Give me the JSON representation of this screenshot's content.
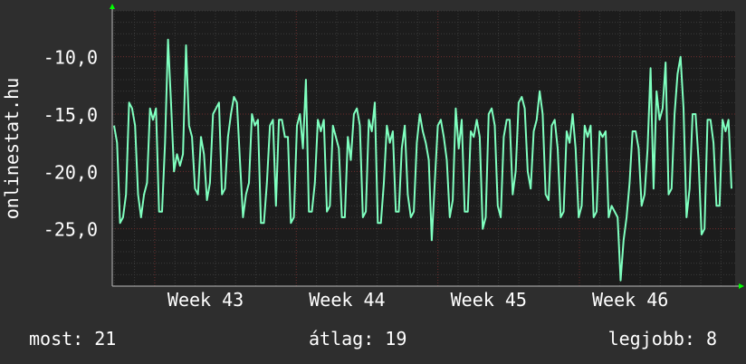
{
  "chart_data": {
    "type": "line",
    "ylabel": "onlinestat.hu",
    "ylim": [
      -30,
      -6
    ],
    "yticks": [
      -10,
      -15,
      -20,
      -25
    ],
    "ytick_labels": [
      "-10,0",
      "-15,0",
      "-20,0",
      "-25,0"
    ],
    "x_range_weeks": [
      42.7,
      47.1
    ],
    "x_tick_labels": [
      {
        "label": "Week 43",
        "week": 43
      },
      {
        "label": "Week 44",
        "week": 44
      },
      {
        "label": "Week 45",
        "week": 45
      },
      {
        "label": "Week 46",
        "week": 46
      }
    ],
    "grid": true,
    "colors": {
      "background": "#2e2e2e",
      "plot_background": "#1c1c1c",
      "line": "#7fffbf",
      "grid_major": "#6a2a2a",
      "grid_minor": "#3a3a3a",
      "axis_arrow": "#00ff00"
    },
    "series": [
      {
        "values": [
          -16,
          -17.5,
          -24.5,
          -24,
          -22,
          -14,
          -14.5,
          -16,
          -22,
          -24,
          -22,
          -21,
          -14.5,
          -15.5,
          -14.5,
          -23.5,
          -23.5,
          -17.5,
          -8.5,
          -14,
          -20,
          -18.5,
          -19.5,
          -18.5,
          -9,
          -16,
          -17,
          -21.5,
          -22,
          -17,
          -18.5,
          -22.5,
          -21,
          -15,
          -14.5,
          -14,
          -22,
          -21.5,
          -17,
          -15,
          -13.5,
          -14,
          -19,
          -24,
          -22,
          -21,
          -15,
          -16,
          -15.5,
          -24.5,
          -24.5,
          -21,
          -16,
          -15.5,
          -23,
          -15.5,
          -15.5,
          -17,
          -17,
          -24.5,
          -24,
          -16,
          -15,
          -18,
          -12,
          -23.5,
          -23.5,
          -21,
          -15.5,
          -16.5,
          -15.5,
          -23.5,
          -23,
          -16,
          -17,
          -18,
          -24,
          -24,
          -17,
          -19,
          -15,
          -14.5,
          -16,
          -24,
          -23.5,
          -15.5,
          -16.5,
          -14,
          -24.5,
          -24.5,
          -21,
          -16,
          -17.5,
          -16.5,
          -23.5,
          -23.5,
          -18,
          -16,
          -22,
          -24,
          -23.5,
          -17.5,
          -15,
          -16.5,
          -17.5,
          -19,
          -26,
          -21,
          -16,
          -15.5,
          -17,
          -19,
          -24,
          -22.5,
          -14.5,
          -18,
          -15.5,
          -23.5,
          -23.5,
          -16.5,
          -17,
          -15.5,
          -17,
          -25,
          -24,
          -15,
          -14.5,
          -16,
          -23,
          -24,
          -17,
          -15.5,
          -15.5,
          -22,
          -20,
          -14,
          -13.5,
          -14.5,
          -20,
          -21.5,
          -16.5,
          -15.5,
          -13,
          -15,
          -22,
          -22.5,
          -16,
          -15.5,
          -18,
          -24,
          -23.5,
          -16.5,
          -17.5,
          -15,
          -18,
          -24,
          -23,
          -16,
          -17,
          -16,
          -24,
          -23.5,
          -16.5,
          -17,
          -16.5,
          -24,
          -23,
          -23.5,
          -24,
          -29.5,
          -26,
          -24,
          -21,
          -16.5,
          -16.5,
          -18,
          -23,
          -22,
          -18,
          -11,
          -21.5,
          -13,
          -15.5,
          -14.5,
          -10.5,
          -22,
          -21.5,
          -15,
          -11.5,
          -10,
          -14.5,
          -24,
          -21.5,
          -15,
          -15,
          -19,
          -25.5,
          -25,
          -15.5,
          -15.5,
          -17.5,
          -23,
          -23,
          -15.5,
          -16.5,
          -15.5,
          -21.5
        ]
      }
    ]
  },
  "stats": {
    "now": "most: 21",
    "avg": "átlag: 19",
    "best": "legjobb: 8"
  }
}
